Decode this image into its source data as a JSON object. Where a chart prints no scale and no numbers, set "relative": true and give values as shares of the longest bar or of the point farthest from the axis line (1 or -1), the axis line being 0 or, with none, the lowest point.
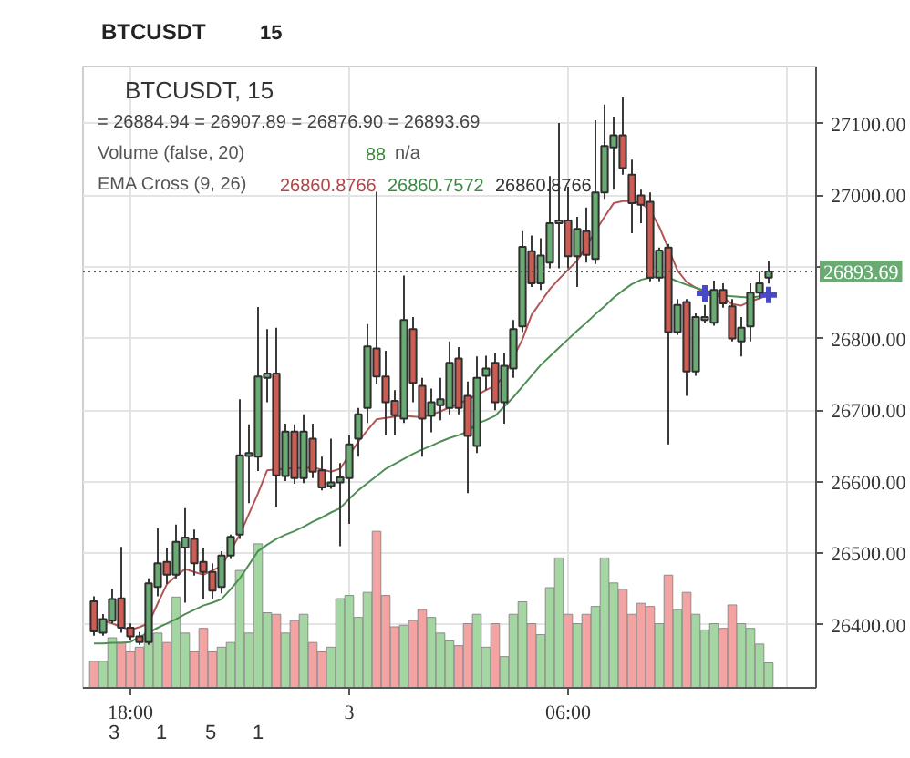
{
  "chart_data": [
    {
      "type": "candlestick",
      "title": "BTCUSDT, 15",
      "categories": [
        null,
        null,
        null,
        null,
        "18:00",
        null,
        null,
        null,
        null,
        null,
        null,
        null,
        null,
        null,
        null,
        null,
        null,
        null,
        null,
        null,
        null,
        null,
        null,
        null,
        null,
        null,
        null,
        null,
        "3",
        null,
        null,
        null,
        null,
        null,
        null,
        null,
        null,
        null,
        null,
        null,
        null,
        null,
        null,
        null,
        null,
        null,
        null,
        null,
        null,
        null,
        null,
        null,
        "06:00",
        null,
        null,
        null,
        null,
        null,
        null,
        null,
        null,
        null,
        null,
        null,
        null,
        null,
        null,
        null,
        null,
        null,
        null,
        null,
        null,
        null,
        null
      ],
      "ylim": [
        26312,
        27180
      ],
      "yticks": [
        {
          "value": 26400,
          "label": "26400.00"
        },
        {
          "value": 26500,
          "label": "26500.00"
        },
        {
          "value": 26600,
          "label": "26600.00"
        },
        {
          "value": 26700,
          "label": "26700.00"
        },
        {
          "value": 26800,
          "label": "26800.00"
        },
        {
          "value": 26900,
          "label": null
        },
        {
          "value": 27000,
          "label": "27000.00"
        },
        {
          "value": 27100,
          "label": "27100.00"
        }
      ],
      "grid": true,
      "ref_lines": [
        {
          "axis": "y",
          "value": 26893.69,
          "label": "26893.69",
          "color": "#555555",
          "line_style": "dotted"
        }
      ],
      "annotations": [
        "= 26884.94 = 26907.89 = 26876.90 = 26893.69",
        "Volume (false, 20)",
        "88",
        "n/a",
        "EMA Cross (9, 26)",
        "26860.8766",
        "26860.7572",
        "26860.8766",
        "BTCUSDT",
        "15",
        "3",
        "1",
        "5",
        "1"
      ],
      "series": [
        {
          "type": "line",
          "color": "#b25555",
          "values": [
            26410,
            26406,
            26402,
            26397,
            26393,
            26397,
            26402,
            26430,
            26457,
            26468,
            26478,
            26474,
            26470,
            26476,
            26482,
            26504,
            26526,
            26555,
            26584,
            26616,
            26617,
            26618,
            26619,
            26619,
            26620,
            26617,
            26614,
            26618,
            26637,
            26656,
            26672,
            26687,
            26689,
            26691,
            26692,
            26691,
            26690,
            26694,
            26698,
            26704,
            26709,
            26715,
            26721,
            26728,
            26734,
            26748,
            null,
            26799,
            26833,
            26851,
            26869,
            26883,
            26896,
            26909,
            26929,
            26950,
            26970,
            26989,
            26992,
            26992,
            26989,
            26979,
            26956,
            26926,
            26895,
            26879,
            26871,
            26865,
            26861,
            26857,
            26848,
            26846,
            26852,
            26856,
            26861
          ]
        },
        {
          "type": "line",
          "color": "#4f8f55",
          "values": [
            26374,
            26374,
            26375,
            26375,
            26376,
            26383,
            26389,
            26396,
            26402,
            26408,
            26415,
            26421,
            26427,
            26431,
            26436,
            26450,
            26465,
            26484,
            26503,
            26512,
            26520,
            26526,
            26531,
            26537,
            26544,
            26550,
            26557,
            26563,
            26576,
            26588,
            26598,
            26608,
            26618,
            26625,
            26632,
            26639,
            26645,
            26650,
            26656,
            26661,
            26665,
            26670,
            26681,
            26686,
            26692,
            26705,
            26718,
            26733,
            26748,
            26763,
            26775,
            26787,
            26799,
            26811,
            26822,
            26834,
            26845,
            26857,
            26867,
            26876,
            26882,
            26885,
            26886,
            26885,
            26880,
            26875,
            26871,
            26867,
            26864,
            26860,
            26859,
            26858,
            26857,
            26859,
            26861
          ]
        },
        {
          "type": "candlestick",
          "ohlc": [
            [
              26433,
              26440,
              26385,
              26391
            ],
            [
              26389,
              26415,
              26385,
              26408
            ],
            [
              26406,
              26450,
              26402,
              26436
            ],
            [
              26437,
              26509,
              26389,
              26396
            ],
            [
              26396,
              26402,
              26379,
              26384
            ],
            [
              26384,
              26390,
              26372,
              26376
            ],
            [
              26376,
              26465,
              26372,
              26458
            ],
            [
              26453,
              26535,
              26440,
              26486
            ],
            [
              26488,
              26508,
              26457,
              26470
            ],
            [
              26470,
              26540,
              26465,
              26516
            ],
            [
              26508,
              26563,
              26431,
              26522
            ],
            [
              26520,
              26533,
              26469,
              26486
            ],
            [
              26488,
              26508,
              26436,
              26474
            ],
            [
              26474,
              26486,
              26436,
              26448
            ],
            [
              26453,
              26503,
              26444,
              26497
            ],
            [
              26497,
              26526,
              26492,
              26523
            ],
            [
              26526,
              26715,
              26520,
              26637
            ],
            [
              26636,
              26680,
              26570,
              26640
            ],
            [
              26635,
              26844,
              26615,
              26747
            ],
            [
              26745,
              26813,
              26711,
              26751
            ],
            [
              26751,
              26815,
              26565,
              26609
            ],
            [
              26608,
              26681,
              26601,
              26670
            ],
            [
              26670,
              26680,
              26597,
              26605
            ],
            [
              26605,
              26694,
              26598,
              26670
            ],
            [
              26660,
              26681,
              26605,
              26614
            ],
            [
              26616,
              26635,
              26588,
              26592
            ],
            [
              26594,
              26660,
              26590,
              26599
            ],
            [
              26599,
              26626,
              26510,
              26606
            ],
            [
              26605,
              26665,
              26541,
              26652
            ],
            [
              26660,
              26703,
              26635,
              26694
            ],
            [
              26703,
              26820,
              26682,
              26789
            ],
            [
              26786,
              27005,
              26736,
              26747
            ],
            [
              26747,
              26783,
              26665,
              26711
            ],
            [
              26713,
              26728,
              26665,
              26693
            ],
            [
              26688,
              26888,
              26682,
              26826
            ],
            [
              26813,
              26830,
              26711,
              26738
            ],
            [
              26734,
              26745,
              26635,
              26688
            ],
            [
              26692,
              26730,
              26669,
              26711
            ],
            [
              26707,
              26745,
              26686,
              26715
            ],
            [
              26703,
              26796,
              26694,
              26766
            ],
            [
              26772,
              26788,
              26694,
              26703
            ],
            [
              26720,
              26740,
              26584,
              26664
            ],
            [
              26650,
              26775,
              26640,
              26745
            ],
            [
              26748,
              26776,
              26728,
              26758
            ],
            [
              26766,
              26779,
              26700,
              26711
            ],
            [
              26711,
              26779,
              26681,
              26762
            ],
            [
              26758,
              26826,
              26745,
              26813
            ],
            [
              26817,
              26950,
              26809,
              26928
            ],
            [
              26922,
              26944,
              26872,
              26877
            ],
            [
              26877,
              26940,
              26868,
              26916
            ],
            [
              26906,
              27027,
              26898,
              26961
            ],
            [
              26961,
              27101,
              26898,
              26965
            ],
            [
              26965,
              27012,
              26898,
              26915
            ],
            [
              26915,
              26970,
              26872,
              26953
            ],
            [
              26950,
              26983,
              26906,
              26917
            ],
            [
              26911,
              27105,
              26904,
              27004
            ],
            [
              27004,
              27127,
              26995,
              27069
            ],
            [
              27067,
              27110,
              27008,
              27084
            ],
            [
              27084,
              27137,
              27029,
              27038
            ],
            [
              27029,
              27050,
              26947,
              26989
            ],
            [
              27000,
              27008,
              26961,
              26987
            ],
            [
              26991,
              27004,
              26880,
              26885
            ],
            [
              26885,
              26927,
              26880,
              26923
            ],
            [
              26927,
              26932,
              26652,
              26809
            ],
            [
              26809,
              26855,
              26805,
              26847
            ],
            [
              26851,
              26855,
              26720,
              26754
            ],
            [
              26754,
              26835,
              26748,
              26830
            ],
            [
              26826,
              26847,
              26821,
              26830
            ],
            [
              26822,
              26881,
              26818,
              26868
            ],
            [
              26868,
              26877,
              26843,
              26849
            ],
            [
              26845,
              26855,
              26796,
              26800
            ],
            [
              26796,
              26830,
              26775,
              26815
            ],
            [
              26817,
              26877,
              26796,
              26864
            ],
            [
              26864,
              26893,
              26856,
              26877
            ],
            [
              26884.94,
              26907.89,
              26876.9,
              26893.69
            ]
          ],
          "colors": [
            "#cd5c52",
            "#6aab74",
            "#6aab74",
            "#cd5c52",
            "#cd5c52",
            "#cd5c52",
            "#6aab74",
            "#6aab74",
            "#cd5c52",
            "#6aab74",
            "#6aab74",
            "#cd5c52",
            "#cd5c52",
            "#cd5c52",
            "#6aab74",
            "#6aab74",
            "#6aab74",
            "#6aab74",
            "#6aab74",
            "#6aab74",
            "#cd5c52",
            "#6aab74",
            "#cd5c52",
            "#6aab74",
            "#cd5c52",
            "#cd5c52",
            "#6aab74",
            "#6aab74",
            "#6aab74",
            "#6aab74",
            "#6aab74",
            "#cd5c52",
            "#cd5c52",
            "#cd5c52",
            "#6aab74",
            "#cd5c52",
            "#cd5c52",
            "#6aab74",
            "#6aab74",
            "#6aab74",
            "#cd5c52",
            "#cd5c52",
            "#6aab74",
            "#6aab74",
            "#cd5c52",
            "#6aab74",
            "#6aab74",
            "#6aab74",
            "#cd5c52",
            "#6aab74",
            "#6aab74",
            "#6aab74",
            "#cd5c52",
            "#6aab74",
            "#cd5c52",
            "#6aab74",
            "#6aab74",
            "#6aab74",
            "#cd5c52",
            "#cd5c52",
            "#cd5c52",
            "#cd5c52",
            "#6aab74",
            "#cd5c52",
            "#6aab74",
            "#cd5c52",
            "#6aab74",
            "#6aab74",
            "#6aab74",
            "#cd5c52",
            "#cd5c52",
            "#6aab74",
            "#6aab74",
            "#6aab74",
            "#6aab74"
          ]
        },
        {
          "type": "scatter",
          "marker": "cross",
          "color": "#4848c8",
          "values": [
            null,
            null,
            null,
            null,
            null,
            null,
            null,
            null,
            null,
            null,
            null,
            null,
            null,
            null,
            null,
            null,
            null,
            null,
            null,
            null,
            null,
            null,
            null,
            null,
            null,
            null,
            null,
            null,
            null,
            null,
            null,
            null,
            null,
            null,
            null,
            null,
            null,
            null,
            null,
            null,
            null,
            null,
            null,
            null,
            null,
            null,
            null,
            null,
            null,
            null,
            null,
            null,
            null,
            null,
            null,
            null,
            null,
            null,
            null,
            null,
            null,
            null,
            null,
            null,
            null,
            null,
            null,
            26863,
            null,
            null,
            null,
            null,
            null,
            null,
            26861
          ]
        }
      ]
    },
    {
      "type": "bar",
      "relative": true,
      "tick_labels": false,
      "categories": [
        null,
        null,
        null,
        null,
        null,
        null,
        null,
        null,
        null,
        null,
        null,
        null,
        null,
        null,
        null,
        null,
        null,
        null,
        null,
        null,
        null,
        null,
        null,
        null,
        null,
        null,
        null,
        null,
        null,
        null,
        null,
        null,
        null,
        null,
        null,
        null,
        null,
        null,
        null,
        null,
        null,
        null,
        null,
        null,
        null,
        null,
        null,
        null,
        null,
        null,
        null,
        null,
        null,
        null,
        null,
        null,
        null,
        null,
        null,
        null,
        null,
        null,
        null,
        null,
        null,
        null,
        null,
        null,
        null,
        null,
        null,
        null,
        null,
        null,
        null
      ],
      "values": [
        0.17,
        0.17,
        0.32,
        0.29,
        0.23,
        0.26,
        0.35,
        0.35,
        0.29,
        0.58,
        0.35,
        0.23,
        0.38,
        0.23,
        0.26,
        0.29,
        0.75,
        0.35,
        0.92,
        0.48,
        0.47,
        0.35,
        0.43,
        0.47,
        0.29,
        0.23,
        0.26,
        0.57,
        0.59,
        0.45,
        0.61,
        1,
        0.59,
        0.39,
        0.4,
        0.43,
        0.5,
        0.45,
        0.35,
        0.3,
        0.27,
        0.41,
        0.47,
        0.26,
        0.41,
        0.2,
        0.47,
        0.55,
        0.41,
        0.34,
        0.64,
        0.83,
        0.47,
        0.41,
        0.47,
        0.52,
        0.83,
        0.67,
        0.63,
        0.47,
        0.54,
        0.52,
        0.41,
        0.72,
        0.5,
        0.61,
        0.47,
        0.37,
        0.41,
        0.38,
        0.53,
        0.41,
        0.38,
        0.28,
        0.16
      ],
      "colors": [
        "#f4a3a3",
        "#a3d6a0",
        "#a3d6a0",
        "#f4a3a3",
        "#f4a3a3",
        "#f4a3a3",
        "#a3d6a0",
        "#a3d6a0",
        "#f4a3a3",
        "#a3d6a0",
        "#a3d6a0",
        "#f4a3a3",
        "#f4a3a3",
        "#f4a3a3",
        "#a3d6a0",
        "#a3d6a0",
        "#a3d6a0",
        "#a3d6a0",
        "#a3d6a0",
        "#a3d6a0",
        "#f4a3a3",
        "#a3d6a0",
        "#f4a3a3",
        "#a3d6a0",
        "#f4a3a3",
        "#f4a3a3",
        "#a3d6a0",
        "#a3d6a0",
        "#a3d6a0",
        "#a3d6a0",
        "#a3d6a0",
        "#f4a3a3",
        "#f4a3a3",
        "#f4a3a3",
        "#a3d6a0",
        "#f4a3a3",
        "#f4a3a3",
        "#a3d6a0",
        "#a3d6a0",
        "#a3d6a0",
        "#f4a3a3",
        "#f4a3a3",
        "#a3d6a0",
        "#a3d6a0",
        "#f4a3a3",
        "#a3d6a0",
        "#a3d6a0",
        "#a3d6a0",
        "#f4a3a3",
        "#a3d6a0",
        "#a3d6a0",
        "#a3d6a0",
        "#f4a3a3",
        "#a3d6a0",
        "#f4a3a3",
        "#a3d6a0",
        "#a3d6a0",
        "#a3d6a0",
        "#f4a3a3",
        "#f4a3a3",
        "#f4a3a3",
        "#f4a3a3",
        "#a3d6a0",
        "#f4a3a3",
        "#a3d6a0",
        "#f4a3a3",
        "#a3d6a0",
        "#a3d6a0",
        "#a3d6a0",
        "#f4a3a3",
        "#f4a3a3",
        "#a3d6a0",
        "#a3d6a0",
        "#a3d6a0",
        "#a3d6a0"
      ]
    }
  ]
}
